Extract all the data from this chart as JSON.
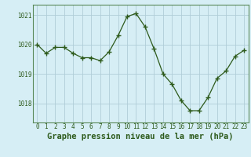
{
  "x": [
    0,
    1,
    2,
    3,
    4,
    5,
    6,
    7,
    8,
    9,
    10,
    11,
    12,
    13,
    14,
    15,
    16,
    17,
    18,
    19,
    20,
    21,
    22,
    23
  ],
  "y": [
    1020.0,
    1019.7,
    1019.9,
    1019.9,
    1019.7,
    1019.55,
    1019.55,
    1019.45,
    1019.75,
    1020.3,
    1020.95,
    1021.05,
    1020.6,
    1019.85,
    1019.0,
    1018.65,
    1018.1,
    1017.75,
    1017.75,
    1018.2,
    1018.85,
    1019.1,
    1019.6,
    1019.8
  ],
  "line_color": "#2d5a1b",
  "marker": "+",
  "marker_size": 4,
  "bg_color": "#d6eef5",
  "grid_color": "#b0cdd8",
  "label_color": "#2d5a1b",
  "xlabel": "Graphe pression niveau de la mer (hPa)",
  "ylim": [
    1017.35,
    1021.35
  ],
  "yticks": [
    1018,
    1019,
    1020,
    1021
  ],
  "xticks": [
    0,
    1,
    2,
    3,
    4,
    5,
    6,
    7,
    8,
    9,
    10,
    11,
    12,
    13,
    14,
    15,
    16,
    17,
    18,
    19,
    20,
    21,
    22,
    23
  ],
  "tick_label_fontsize": 5.5,
  "xlabel_fontsize": 7.5,
  "border_color": "#2d5a1b",
  "spine_color": "#5a8a5a"
}
